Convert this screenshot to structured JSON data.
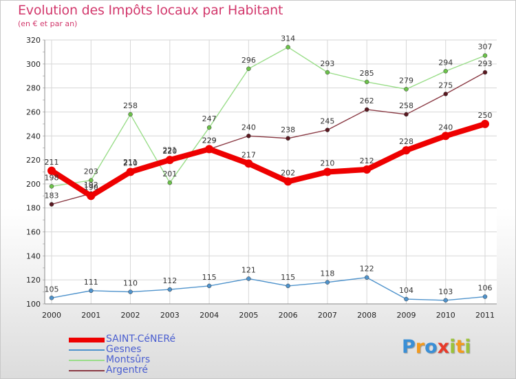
{
  "chart_data": {
    "type": "line",
    "title": "Evolution des Impôts locaux par Habitant",
    "subtitle": "(en € et par an)",
    "categories": [
      "2000",
      "2001",
      "2002",
      "2003",
      "2004",
      "2005",
      "2006",
      "2007",
      "2008",
      "2009",
      "2010",
      "2011"
    ],
    "ylim": [
      100,
      320
    ],
    "yticks": [
      100,
      120,
      140,
      160,
      180,
      200,
      220,
      240,
      260,
      280,
      300,
      320
    ],
    "grid": true,
    "legend_position": "bottom-left",
    "series": [
      {
        "name": "Gesnes",
        "color": "#4f93cc",
        "dot": "#4f93cc",
        "values": [
          105,
          111,
          110,
          112,
          115,
          121,
          115,
          118,
          122,
          104,
          103,
          106
        ]
      },
      {
        "name": "Montsûrs",
        "color": "#99dd88",
        "dot": "#6cc24a",
        "values": [
          198,
          203,
          258,
          201,
          247,
          296,
          314,
          293,
          285,
          279,
          294,
          307
        ]
      },
      {
        "name": "Argentré",
        "color": "#8a3a44",
        "dot": "#5a1820",
        "values": [
          183,
          192,
          211,
          221,
          229,
          240,
          238,
          245,
          262,
          258,
          275,
          293
        ]
      },
      {
        "name": "SAINT-CéNERé",
        "color": "#ee0000",
        "dot": "#ee0000",
        "values": [
          211,
          190,
          210,
          220,
          229,
          217,
          202,
          210,
          212,
          228,
          240,
          250
        ]
      }
    ],
    "legend": [
      "SAINT-CéNERé",
      "Gesnes",
      "Montsûrs",
      "Argentré"
    ],
    "brand": "Proxiti"
  }
}
